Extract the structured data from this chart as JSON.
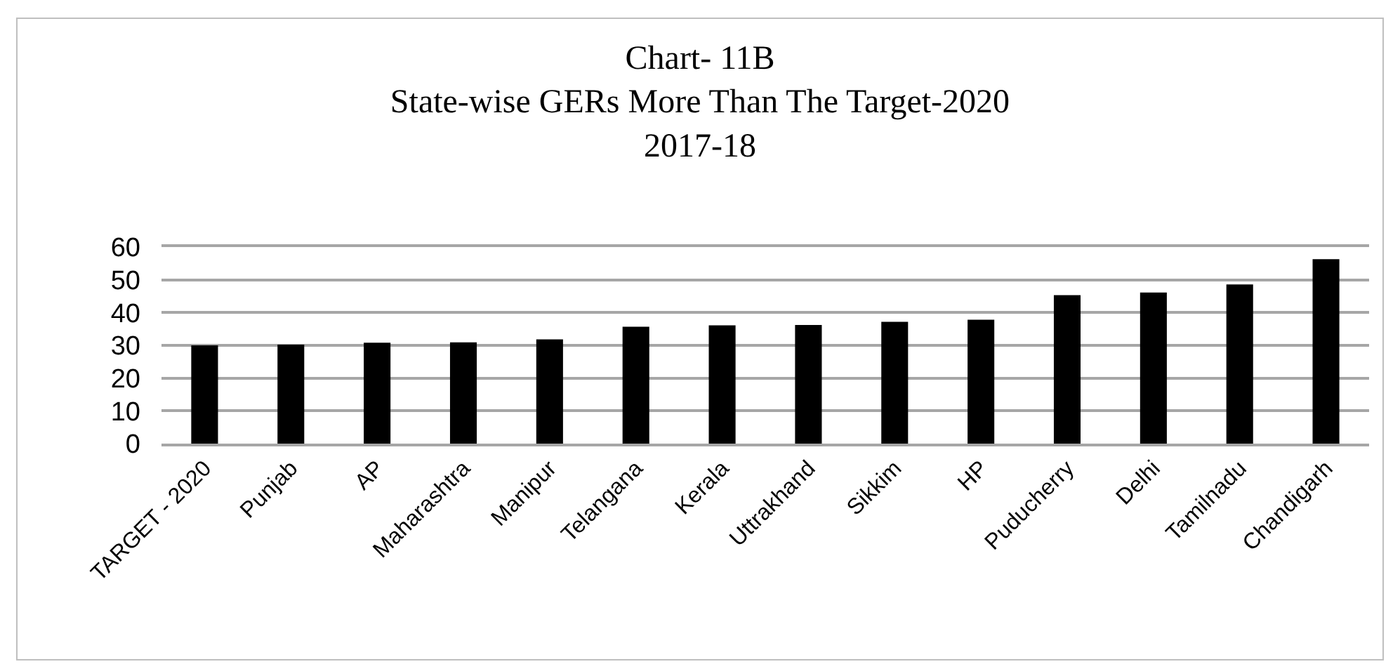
{
  "chart_data": {
    "type": "bar",
    "title": "Chart- 11B\nState-wise GERs More Than The Target-2020\n2017-18",
    "categories": [
      "TARGET - 2020",
      "Punjab",
      "AP",
      "Maharashtra",
      "Manipur",
      "Telangana",
      "Kerala",
      "Uttrakhand",
      "Sikkim",
      "HP",
      "Puducherry",
      "Delhi",
      "Tamilnadu",
      "Chandigarh"
    ],
    "values": [
      30,
      30.2,
      30.8,
      30.9,
      31.8,
      35.7,
      36.1,
      36.2,
      37.2,
      37.8,
      45.3,
      46.1,
      48.6,
      56.3
    ],
    "color": "#000000",
    "ylim": [
      0,
      60
    ],
    "yticks": [
      0,
      10,
      20,
      30,
      40,
      50,
      60
    ],
    "grid": "y"
  }
}
